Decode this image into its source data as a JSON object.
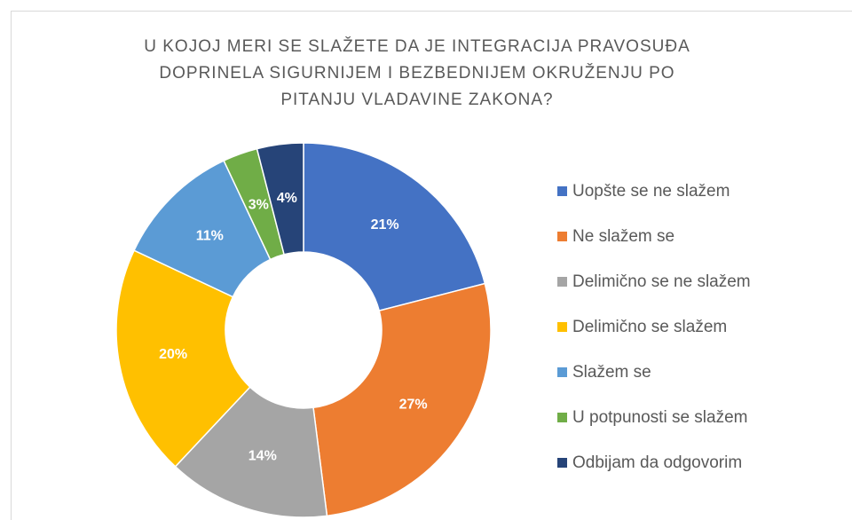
{
  "chart_data": {
    "type": "donut",
    "title": "U KOJOJ MERI SE SLAŽETE DA JE INTEGRACIJA PRAVOSUĐA DOPRINELA SIGURNIJEM I BEZBEDNIJEM OKRUŽENJU PO PITANJU VLADAVINE ZAKONA?",
    "categories": [
      "Uopšte se ne slažem",
      "Ne slažem se",
      "Delimično se ne slažem",
      "Delimično se slažem",
      "Slažem se",
      "U potpunosti se slažem",
      "Odbijam da odgovorim"
    ],
    "values": [
      21,
      27,
      14,
      20,
      11,
      3,
      4
    ],
    "value_labels": [
      "21%",
      "27%",
      "14%",
      "20%",
      "11%",
      "3%",
      "4%"
    ],
    "colors": [
      "#4472c4",
      "#ed7d31",
      "#a5a5a5",
      "#ffc000",
      "#5b9bd5",
      "#70ad47",
      "#264478"
    ],
    "legend": "right"
  }
}
